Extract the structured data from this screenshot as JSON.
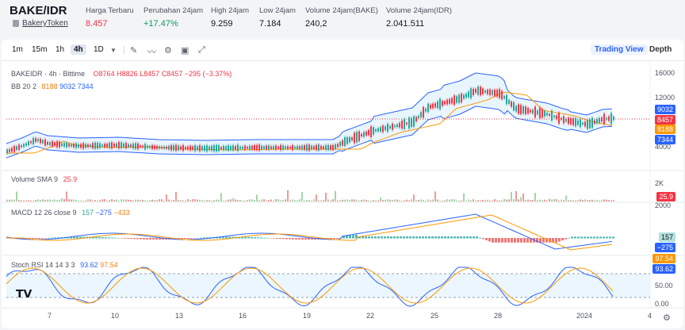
{
  "header": {
    "pair": "BAKE/IDR",
    "token_name": "BakeryToken",
    "stats": [
      {
        "label": "Harga Terbaru",
        "value": "8.457",
        "color": "#f23645"
      },
      {
        "label": "Perubahan 24jam",
        "value": "+17.47%",
        "color": "#0b9b62"
      },
      {
        "label": "High 24jam",
        "value": "9.259",
        "color": "#131722"
      },
      {
        "label": "Low 24jam",
        "value": "7.184",
        "color": "#131722"
      },
      {
        "label": "Volume 24jam(BAKE)",
        "value": "240,2",
        "color": "#131722"
      },
      {
        "label": "Volume 24jam(IDR)",
        "value": "2.041.511",
        "color": "#131722"
      }
    ]
  },
  "toolbar": {
    "timeframes": [
      "1m",
      "15m",
      "1h",
      "4h",
      "1D"
    ],
    "active_timeframe": "4h",
    "tools": [
      "pencil-icon",
      "indicator-icon",
      "settings-icon",
      "save-icon",
      "fullscreen-icon"
    ],
    "trading_view": "Trading View",
    "depth": "Depth"
  },
  "main_legend": {
    "symbol": "BAKEIDR · 4h · Bittime",
    "o": "O8764",
    "h": "H8826",
    "l": "L8457",
    "c": "C8457",
    "change": "−295 (−3.37%)",
    "bb_label": "BB 20 2",
    "bb_basis": "8188",
    "bb_upper": "9032",
    "bb_lower": "7344"
  },
  "price_axis": [
    "16000",
    "12000",
    "4000"
  ],
  "price_labels": [
    {
      "text": "9032",
      "color": "#2962ff"
    },
    {
      "text": "8457",
      "color": "#f23645"
    },
    {
      "text": "8188",
      "color": "#ff9800"
    },
    {
      "text": "7344",
      "color": "#2962ff"
    }
  ],
  "volume": {
    "label": "Volume SMA 9",
    "value": "25.9",
    "axis": "2K",
    "tag": "25.9"
  },
  "macd": {
    "label": "MACD 12 26 close 9",
    "v1": "157",
    "v2": "−275",
    "v3": "−433",
    "axis": "2000",
    "tag1": "157",
    "tag2": "−275"
  },
  "stoch": {
    "label": "Stoch RSI 14 14 3 3",
    "k": "93.62",
    "d": "97.54",
    "axis": [
      "50.00",
      "0.00"
    ],
    "tag1": "97.54",
    "tag2": "93.62"
  },
  "dates": [
    "7",
    "10",
    "13",
    "16",
    "19",
    "22",
    "25",
    "28",
    "2024",
    "4"
  ],
  "colors": {
    "up": "#26a69a",
    "down": "#f23645",
    "bb": "#2962ff",
    "basis": "#ff9800",
    "accent": "#2962ff"
  }
}
